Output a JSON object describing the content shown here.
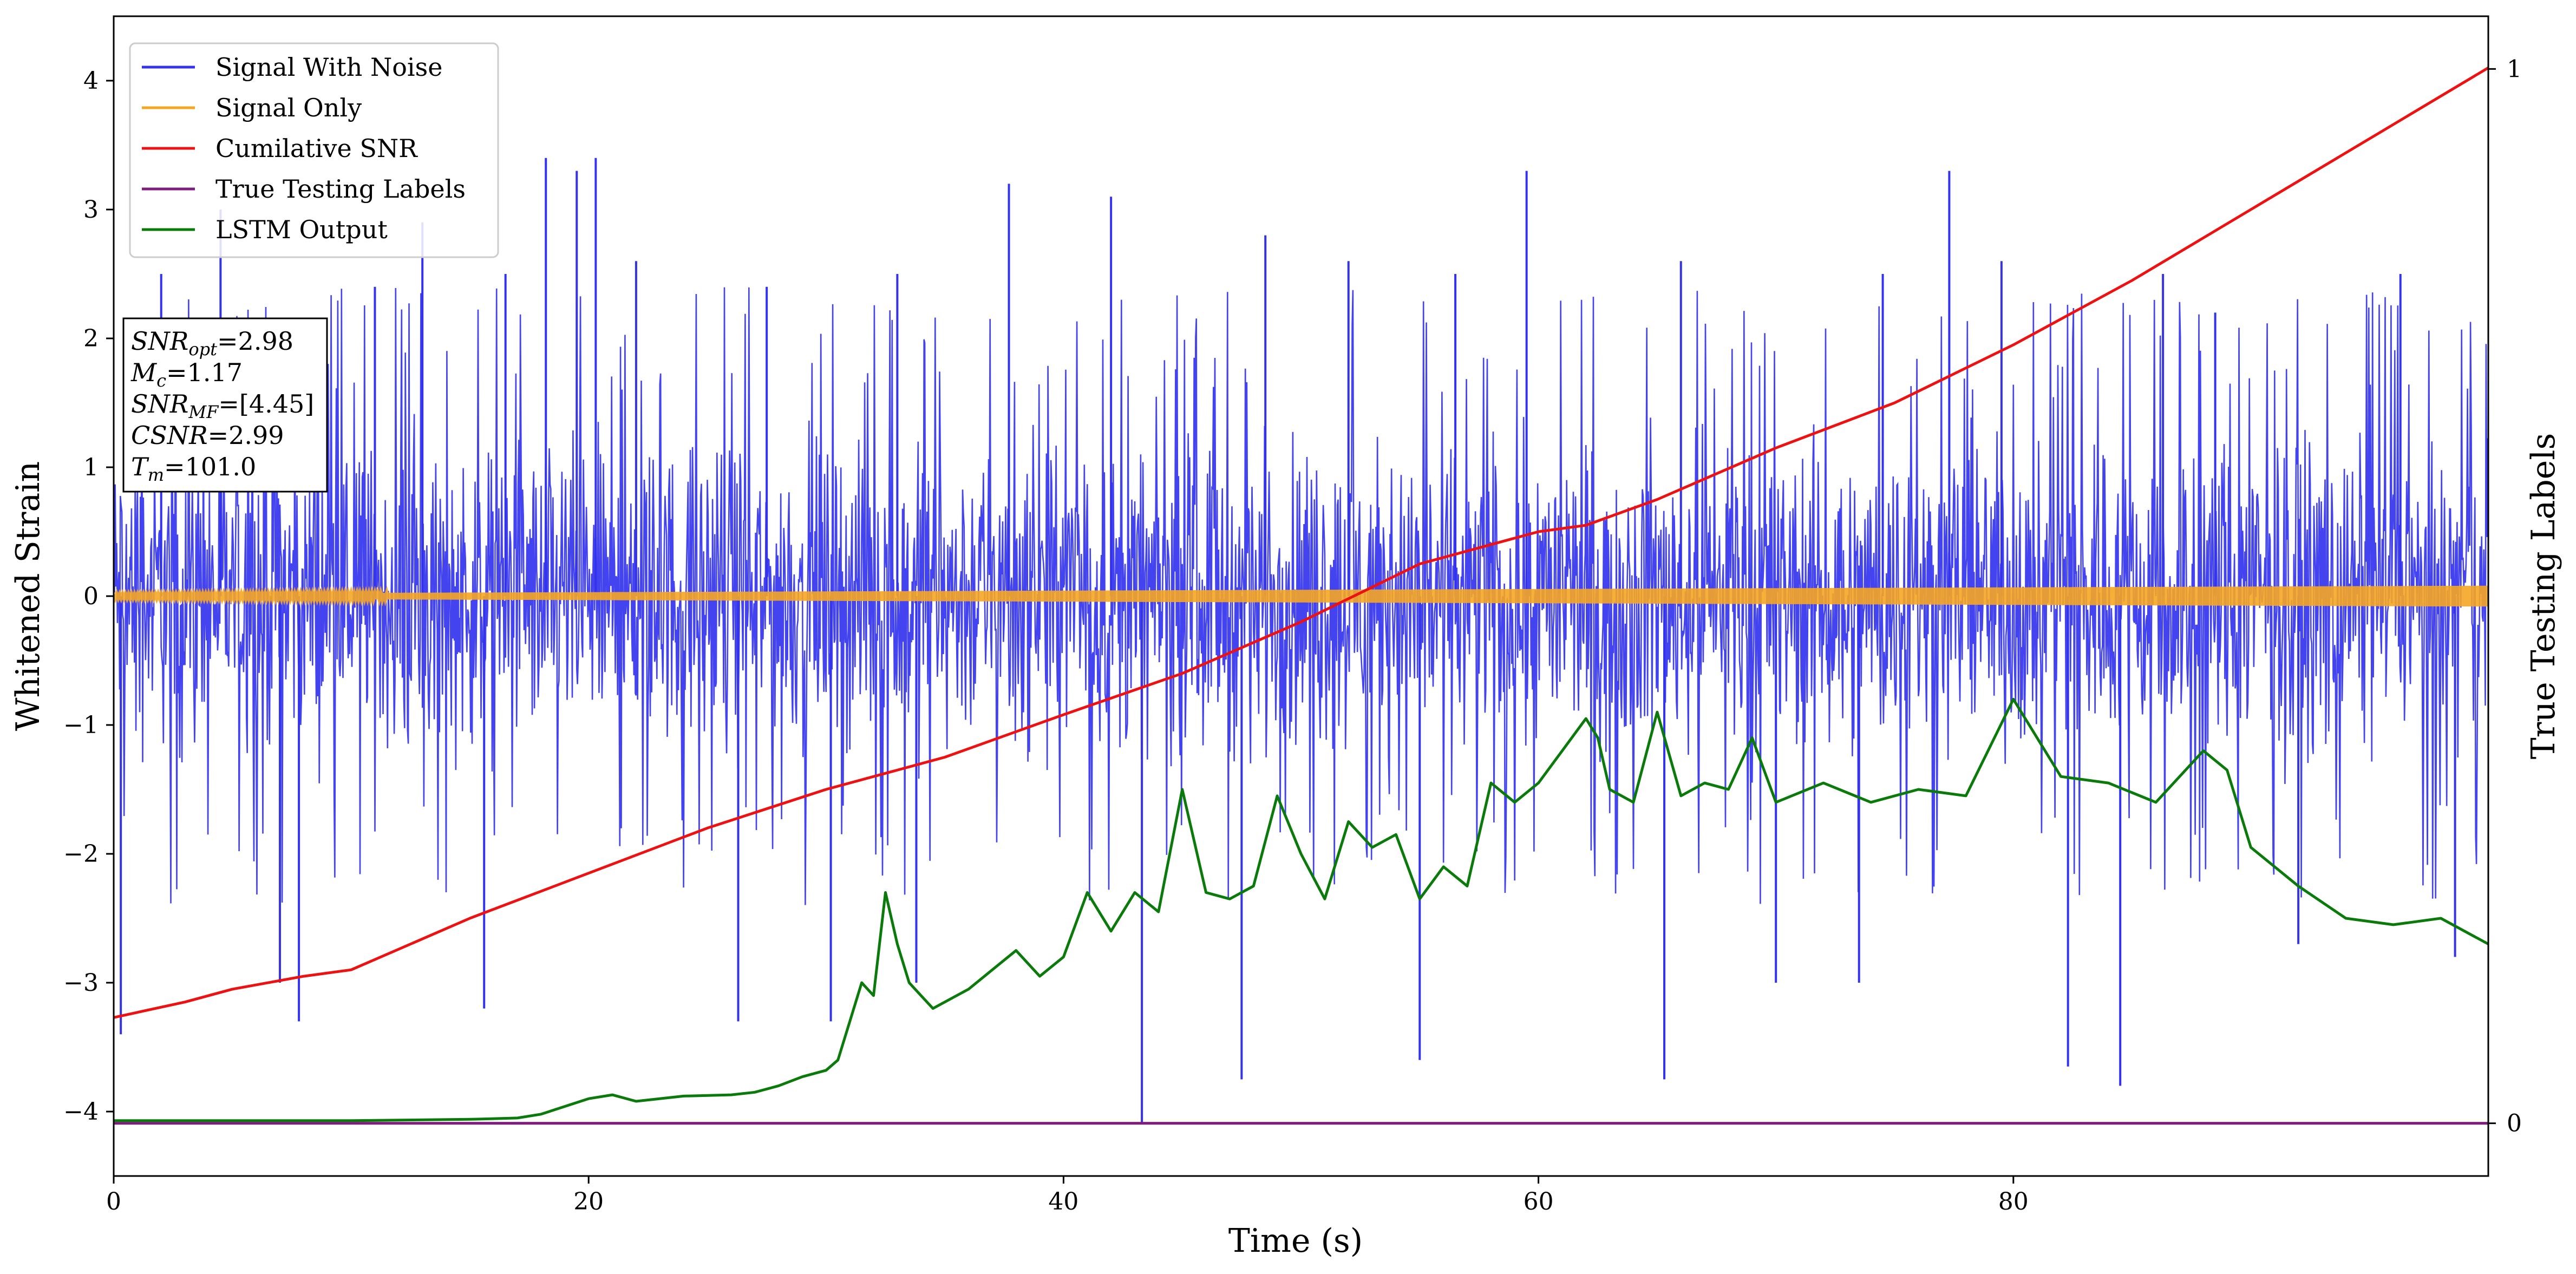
{
  "chart_data": {
    "type": "line",
    "title": "",
    "xlabel": "Time (s)",
    "ylabel": "Whitened Strain",
    "y2label": "True Testing Labels",
    "xlim": [
      0,
      100
    ],
    "ylim": [
      -4.5,
      4.5
    ],
    "y2lim": [
      -0.05,
      1.05
    ],
    "x_ticks": [
      0,
      20,
      40,
      60,
      80
    ],
    "y_ticks": [
      -4,
      -3,
      -2,
      -1,
      0,
      1,
      2,
      3,
      4
    ],
    "y2_ticks": [
      0,
      1
    ],
    "grid": false,
    "legend_position": "top-left",
    "series": [
      {
        "name": "Signal With Noise",
        "color": "#3333ee",
        "axis": "left",
        "style": "dense-noise",
        "typical_range": [
          -1.6,
          1.6
        ],
        "peaks": [
          {
            "x": 0.3,
            "y": -3.4
          },
          {
            "x": 2.0,
            "y": 2.5
          },
          {
            "x": 4.5,
            "y": 3.0
          },
          {
            "x": 7.0,
            "y": -3.0
          },
          {
            "x": 7.8,
            "y": -3.3
          },
          {
            "x": 11.0,
            "y": 2.4
          },
          {
            "x": 13.0,
            "y": 2.9
          },
          {
            "x": 15.6,
            "y": -3.2
          },
          {
            "x": 16.5,
            "y": 2.5
          },
          {
            "x": 18.2,
            "y": 3.4
          },
          {
            "x": 19.5,
            "y": 3.3
          },
          {
            "x": 20.3,
            "y": 3.4
          },
          {
            "x": 22.0,
            "y": 2.6
          },
          {
            "x": 26.3,
            "y": -3.3
          },
          {
            "x": 27.5,
            "y": 2.4
          },
          {
            "x": 30.2,
            "y": -3.3
          },
          {
            "x": 33.0,
            "y": 2.5
          },
          {
            "x": 33.8,
            "y": -3.0
          },
          {
            "x": 37.7,
            "y": 3.2
          },
          {
            "x": 42.0,
            "y": 3.1
          },
          {
            "x": 43.3,
            "y": -4.1
          },
          {
            "x": 47.5,
            "y": -3.75
          },
          {
            "x": 48.5,
            "y": 2.8
          },
          {
            "x": 52.0,
            "y": 2.6
          },
          {
            "x": 55.0,
            "y": -3.6
          },
          {
            "x": 56.5,
            "y": 2.5
          },
          {
            "x": 59.5,
            "y": 3.3
          },
          {
            "x": 65.3,
            "y": -3.75
          },
          {
            "x": 66.0,
            "y": 2.6
          },
          {
            "x": 70.0,
            "y": -3.0
          },
          {
            "x": 73.5,
            "y": -3.0
          },
          {
            "x": 74.5,
            "y": 2.5
          },
          {
            "x": 77.3,
            "y": 3.3
          },
          {
            "x": 79.5,
            "y": 2.6
          },
          {
            "x": 82.3,
            "y": -3.65
          },
          {
            "x": 84.5,
            "y": -3.8
          },
          {
            "x": 86.3,
            "y": 2.5
          },
          {
            "x": 88.5,
            "y": 2.2
          },
          {
            "x": 92.0,
            "y": -2.7
          },
          {
            "x": 96.3,
            "y": 2.5
          },
          {
            "x": 98.6,
            "y": -2.8
          }
        ]
      },
      {
        "name": "Signal Only",
        "color": "#f5a623",
        "axis": "left",
        "amplitude_start": 0.015,
        "amplitude_end": 0.08
      },
      {
        "name": "Cumilative SNR",
        "color": "#ee1111",
        "axis": "left",
        "x": [
          0,
          3,
          5,
          8,
          10,
          15,
          20,
          25,
          30,
          35,
          40,
          45,
          50,
          55,
          60,
          62,
          65,
          70,
          75,
          80,
          85,
          90,
          95,
          100
        ],
        "values": [
          -3.27,
          -3.15,
          -3.05,
          -2.95,
          -2.9,
          -2.5,
          -2.15,
          -1.8,
          -1.5,
          -1.25,
          -0.92,
          -0.6,
          -0.2,
          0.25,
          0.5,
          0.55,
          0.75,
          1.15,
          1.5,
          1.95,
          2.45,
          3.0,
          3.55,
          4.1
        ]
      },
      {
        "name": "True Testing Labels",
        "color": "#7f1d7f",
        "axis": "right",
        "x": [
          0,
          100
        ],
        "values": [
          0,
          0
        ]
      },
      {
        "name": "LSTM Output",
        "color": "#0a7a0a",
        "axis": "left",
        "x": [
          0,
          10,
          15,
          17,
          18,
          20,
          21,
          22,
          24,
          26,
          27,
          28,
          29,
          30,
          30.5,
          31,
          31.5,
          32,
          32.5,
          33,
          33.5,
          34,
          34.5,
          35,
          36,
          37,
          38,
          39,
          40,
          41,
          42,
          43,
          44,
          45,
          46,
          47,
          48,
          49,
          50,
          51,
          52,
          53,
          54,
          55,
          56,
          57,
          58,
          59,
          60,
          61,
          62,
          62.5,
          63,
          64,
          65,
          66,
          67,
          68,
          69,
          70,
          72,
          74,
          76,
          78,
          80,
          82,
          84,
          86,
          88,
          89,
          90,
          92,
          94,
          96,
          98,
          100
        ],
        "values": [
          -4.07,
          -4.07,
          -4.06,
          -4.05,
          -4.02,
          -3.9,
          -3.87,
          -3.92,
          -3.88,
          -3.87,
          -3.85,
          -3.8,
          -3.73,
          -3.68,
          -3.6,
          -3.3,
          -3.0,
          -3.1,
          -2.3,
          -2.7,
          -3.0,
          -3.1,
          -3.2,
          -3.15,
          -3.05,
          -2.9,
          -2.75,
          -2.95,
          -2.8,
          -2.3,
          -2.6,
          -2.3,
          -2.45,
          -1.5,
          -2.3,
          -2.35,
          -2.25,
          -1.55,
          -2.0,
          -2.35,
          -1.75,
          -1.95,
          -1.85,
          -2.35,
          -2.1,
          -2.25,
          -1.45,
          -1.6,
          -1.45,
          -1.2,
          -0.95,
          -1.1,
          -1.5,
          -1.6,
          -0.9,
          -1.55,
          -1.45,
          -1.5,
          -1.1,
          -1.6,
          -1.45,
          -1.6,
          -1.5,
          -1.55,
          -0.8,
          -1.4,
          -1.45,
          -1.6,
          -1.2,
          -1.35,
          -1.95,
          -2.25,
          -2.5,
          -2.55,
          -2.5,
          -2.7
        ]
      }
    ],
    "annotation": {
      "lines": [
        {
          "label": "SNR",
          "sub": "opt",
          "value": "=2.98"
        },
        {
          "label": "M",
          "sub": "c",
          "value": "=1.17"
        },
        {
          "label": "SNR",
          "sub": "MF",
          "value": "=[4.45]"
        },
        {
          "label": "CSNR",
          "sub": "",
          "value": "=2.99"
        },
        {
          "label": "T",
          "sub": "m",
          "value": "=101.0"
        }
      ]
    }
  }
}
